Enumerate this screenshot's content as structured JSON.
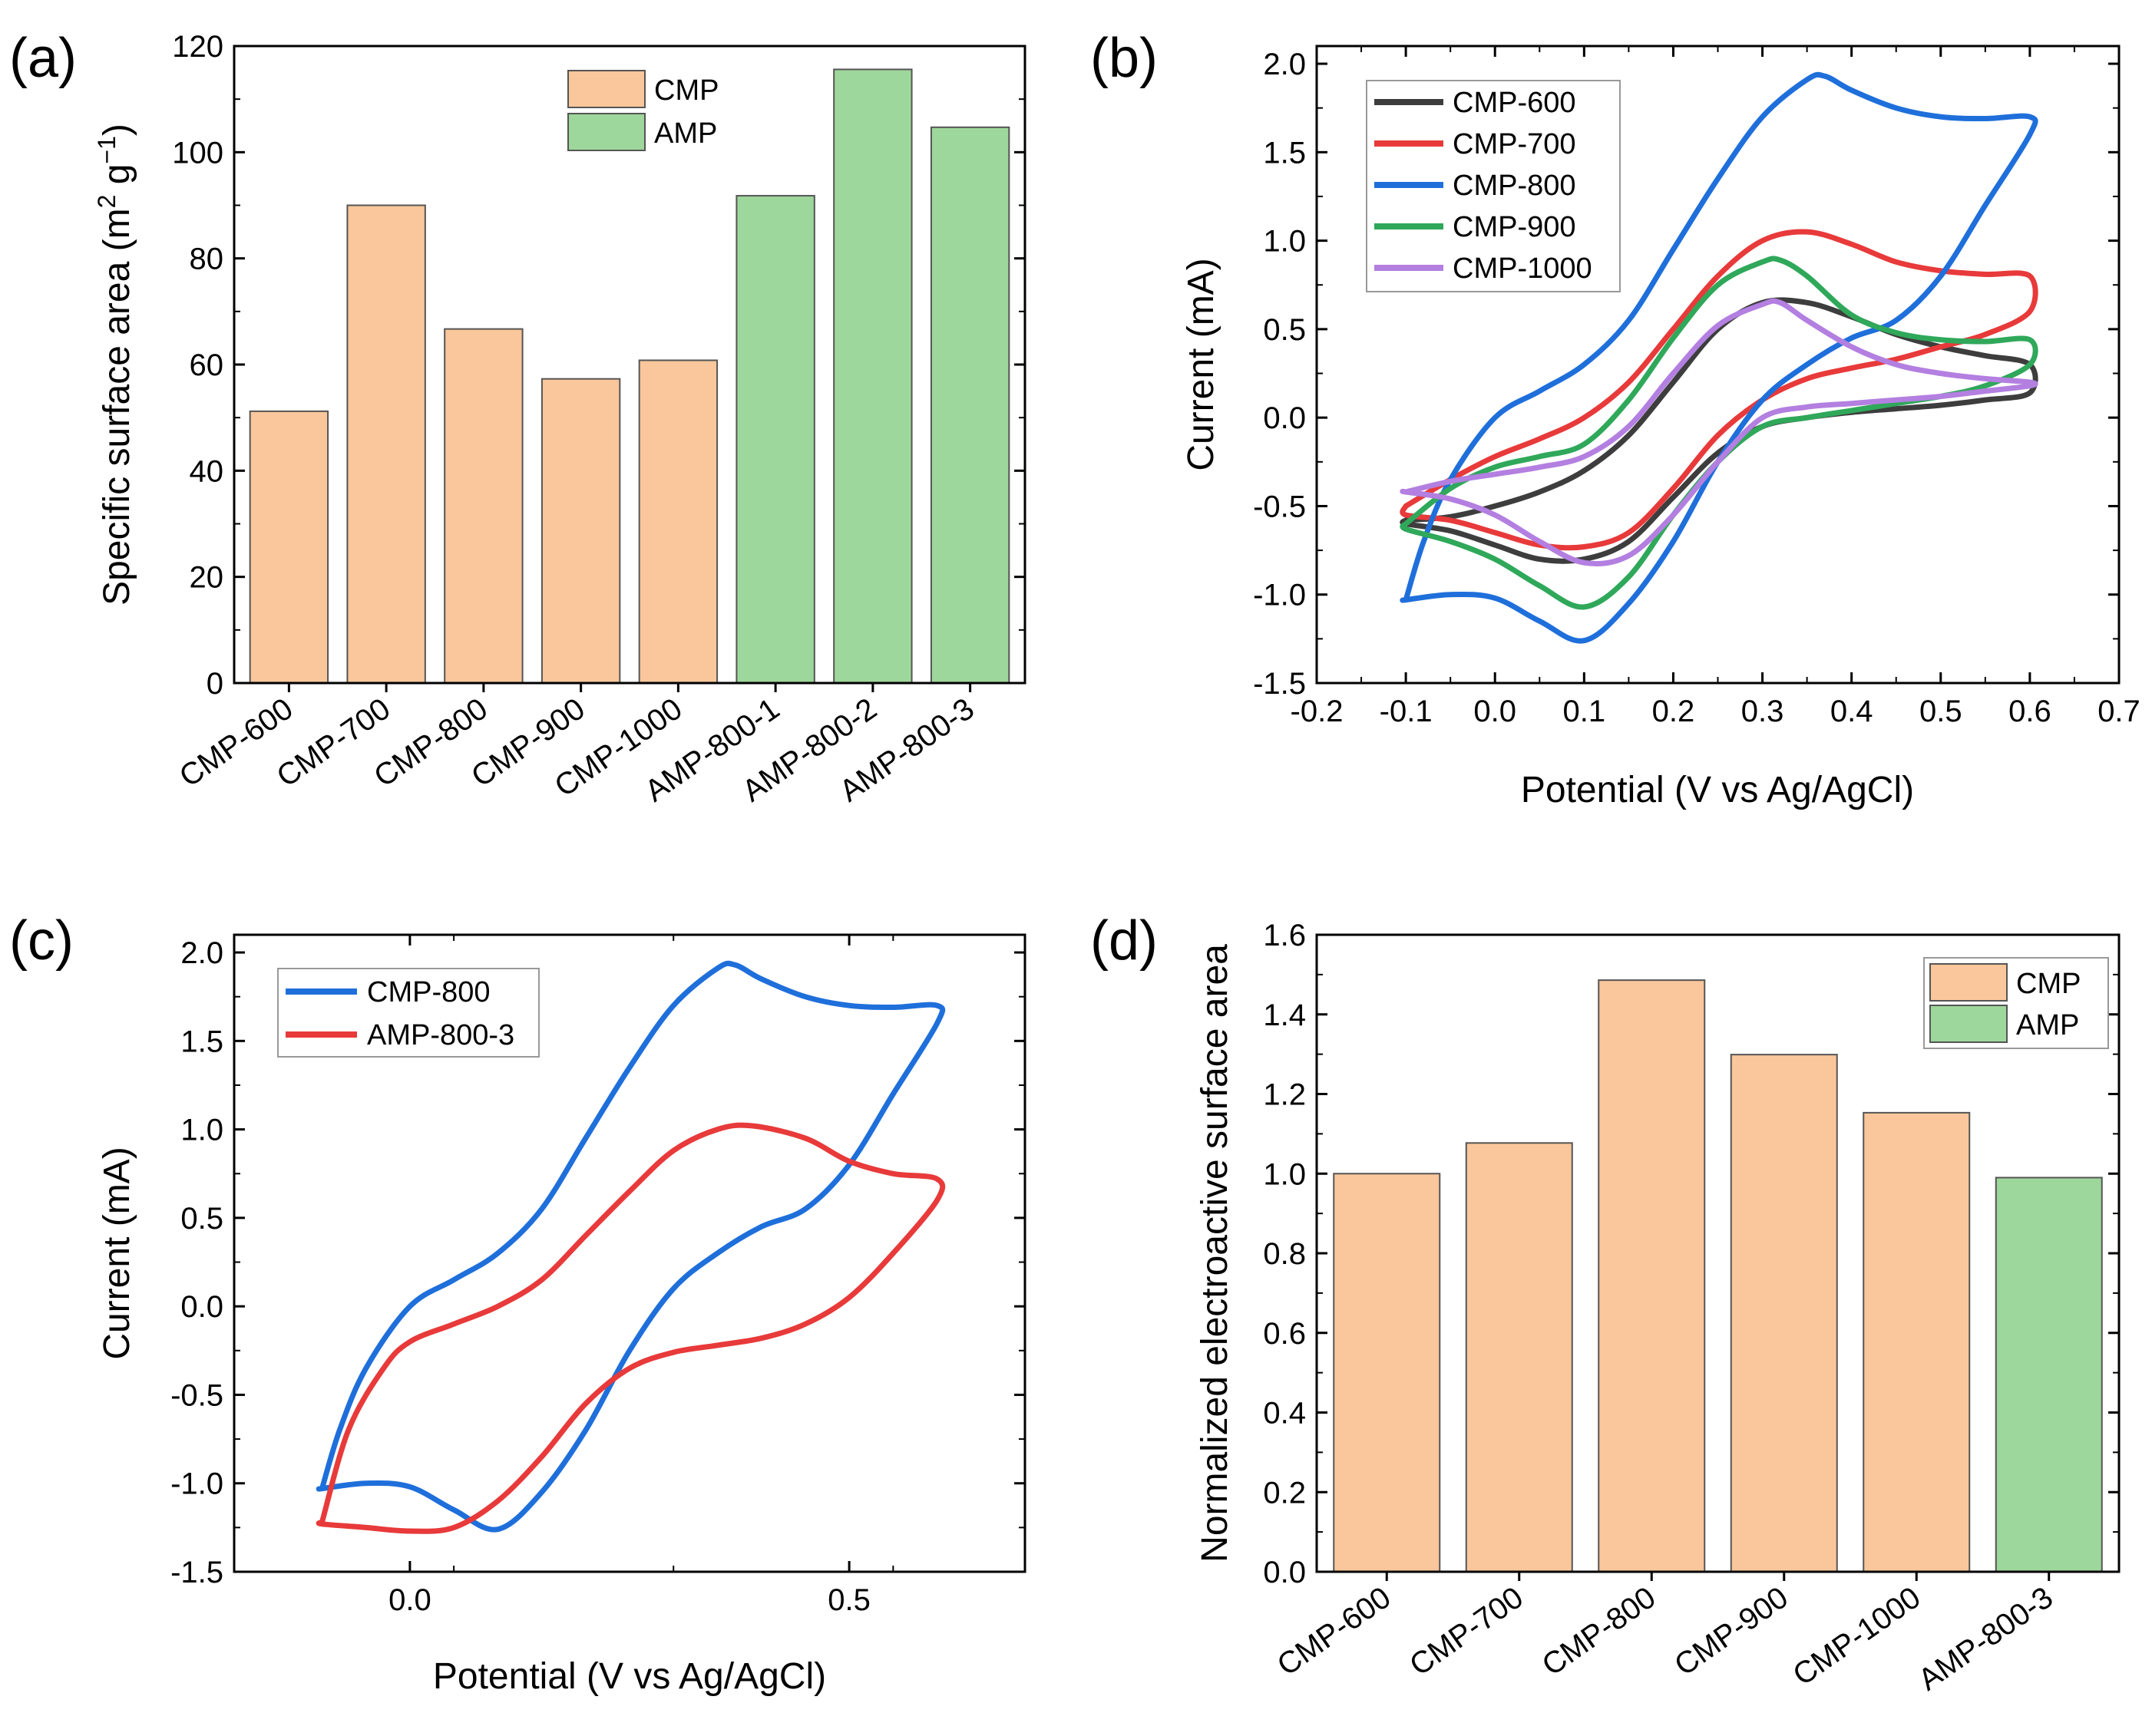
{
  "colors": {
    "CMP": "#f9c79b",
    "AMP": "#9ed79b",
    "bar_edge": "#555555",
    "CMP-600": "#3d3d3d",
    "CMP-700": "#e83a3a",
    "CMP-800": "#1f6fdb",
    "CMP-900": "#2fa85a",
    "CMP-1000": "#b37fe0",
    "AMP-800-3": "#e83a3a"
  },
  "chart_data": [
    {
      "id": "a",
      "panel_label": "(a)",
      "type": "bar",
      "categories": [
        "CMP-600",
        "CMP-700",
        "CMP-800",
        "CMP-900",
        "CMP-1000",
        "AMP-800-1",
        "AMP-800-2",
        "AMP-800-3"
      ],
      "values": [
        51.2,
        90,
        66.7,
        57.3,
        60.8,
        91.8,
        115.6,
        104.7
      ],
      "groups": [
        "CMP",
        "CMP",
        "CMP",
        "CMP",
        "CMP",
        "AMP",
        "AMP",
        "AMP"
      ],
      "legend": [
        "CMP",
        "AMP"
      ],
      "legend_position": "top-center",
      "ylabel_main": "Specific surface area (m",
      "ylabel_sup1": "2",
      "ylabel_mid": " g",
      "ylabel_sup2": "−1",
      "ylabel_end": ")",
      "ylim": [
        0,
        120
      ],
      "yticks": [
        0,
        20,
        40,
        60,
        80,
        100,
        120
      ],
      "xlabel": ""
    },
    {
      "id": "b",
      "panel_label": "(b)",
      "type": "line",
      "xlabel": "Potential (V vs Ag/AgCl)",
      "ylabel": "Current (mA)",
      "xlim": [
        -0.2,
        0.7
      ],
      "ylim": [
        -1.5,
        2.1
      ],
      "xticks": [
        "-0.2",
        "-0.1",
        "0.0",
        "0.1",
        "0.2",
        "0.3",
        "0.4",
        "0.5",
        "0.6",
        "0.7"
      ],
      "yticks": [
        "-1.5",
        "-1.0",
        "-0.5",
        "0.0",
        "0.5",
        "1.0",
        "1.5",
        "2.0"
      ],
      "legend_position": "top-left",
      "series": [
        {
          "name": "CMP-600",
          "colorKey": "CMP-600",
          "x": [
            -0.1,
            -0.05,
            0.0,
            0.05,
            0.1,
            0.15,
            0.2,
            0.25,
            0.3,
            0.35,
            0.4,
            0.45,
            0.5,
            0.55,
            0.6,
            0.6,
            0.55,
            0.5,
            0.45,
            0.4,
            0.35,
            0.3,
            0.25,
            0.2,
            0.15,
            0.1,
            0.05,
            0.0,
            -0.05,
            -0.1,
            -0.1
          ],
          "y": [
            -0.58,
            -0.56,
            -0.5,
            -0.42,
            -0.3,
            -0.1,
            0.2,
            0.5,
            0.65,
            0.65,
            0.57,
            0.47,
            0.4,
            0.35,
            0.3,
            0.14,
            0.1,
            0.07,
            0.05,
            0.03,
            0.0,
            -0.05,
            -0.2,
            -0.45,
            -0.7,
            -0.8,
            -0.8,
            -0.72,
            -0.64,
            -0.6,
            -0.58
          ]
        },
        {
          "name": "CMP-700",
          "colorKey": "CMP-700",
          "x": [
            -0.1,
            -0.05,
            0.0,
            0.05,
            0.1,
            0.15,
            0.2,
            0.25,
            0.3,
            0.35,
            0.4,
            0.45,
            0.5,
            0.55,
            0.6,
            0.6,
            0.55,
            0.5,
            0.45,
            0.4,
            0.35,
            0.3,
            0.25,
            0.2,
            0.15,
            0.1,
            0.05,
            0.0,
            -0.05,
            -0.1,
            -0.1
          ],
          "y": [
            -0.5,
            -0.35,
            -0.22,
            -0.12,
            0.0,
            0.2,
            0.5,
            0.8,
            1.0,
            1.05,
            0.98,
            0.88,
            0.83,
            0.81,
            0.8,
            0.6,
            0.47,
            0.4,
            0.33,
            0.28,
            0.22,
            0.1,
            -0.1,
            -0.4,
            -0.65,
            -0.73,
            -0.72,
            -0.65,
            -0.58,
            -0.55,
            -0.5
          ]
        },
        {
          "name": "CMP-800",
          "colorKey": "CMP-800",
          "x": [
            -0.1,
            -0.08,
            -0.05,
            0.0,
            0.05,
            0.1,
            0.15,
            0.2,
            0.25,
            0.3,
            0.35,
            0.37,
            0.4,
            0.45,
            0.5,
            0.55,
            0.6,
            0.6,
            0.55,
            0.5,
            0.45,
            0.4,
            0.35,
            0.3,
            0.25,
            0.2,
            0.15,
            0.1,
            0.05,
            0.0,
            -0.05,
            -0.1,
            -0.1
          ],
          "y": [
            -1.03,
            -0.7,
            -0.35,
            0.0,
            0.15,
            0.3,
            0.55,
            0.95,
            1.35,
            1.7,
            1.91,
            1.93,
            1.85,
            1.75,
            1.7,
            1.69,
            1.7,
            1.6,
            1.2,
            0.8,
            0.55,
            0.45,
            0.3,
            0.1,
            -0.25,
            -0.7,
            -1.05,
            -1.26,
            -1.15,
            -1.02,
            -1.0,
            -1.03,
            -1.03
          ]
        },
        {
          "name": "CMP-900",
          "colorKey": "CMP-900",
          "x": [
            -0.1,
            -0.05,
            0.0,
            0.05,
            0.1,
            0.15,
            0.2,
            0.25,
            0.3,
            0.32,
            0.35,
            0.4,
            0.45,
            0.5,
            0.55,
            0.6,
            0.6,
            0.55,
            0.5,
            0.45,
            0.4,
            0.35,
            0.3,
            0.25,
            0.2,
            0.15,
            0.1,
            0.05,
            0.0,
            -0.05,
            -0.1,
            -0.1
          ],
          "y": [
            -0.6,
            -0.4,
            -0.28,
            -0.22,
            -0.15,
            0.1,
            0.45,
            0.75,
            0.88,
            0.89,
            0.8,
            0.58,
            0.48,
            0.44,
            0.43,
            0.44,
            0.3,
            0.18,
            0.12,
            0.08,
            0.04,
            0.0,
            -0.05,
            -0.25,
            -0.55,
            -0.9,
            -1.07,
            -0.95,
            -0.8,
            -0.7,
            -0.63,
            -0.6
          ]
        },
        {
          "name": "CMP-1000",
          "colorKey": "CMP-1000",
          "x": [
            -0.1,
            -0.05,
            0.0,
            0.05,
            0.1,
            0.15,
            0.2,
            0.25,
            0.3,
            0.32,
            0.35,
            0.4,
            0.45,
            0.5,
            0.55,
            0.6,
            0.6,
            0.55,
            0.5,
            0.45,
            0.4,
            0.35,
            0.3,
            0.25,
            0.2,
            0.15,
            0.1,
            0.05,
            0.0,
            -0.05,
            -0.1,
            -0.1
          ],
          "y": [
            -0.42,
            -0.36,
            -0.32,
            -0.28,
            -0.22,
            -0.05,
            0.25,
            0.52,
            0.64,
            0.65,
            0.55,
            0.4,
            0.3,
            0.25,
            0.22,
            0.2,
            0.18,
            0.15,
            0.12,
            0.1,
            0.08,
            0.06,
            0.0,
            -0.25,
            -0.55,
            -0.78,
            -0.82,
            -0.7,
            -0.55,
            -0.46,
            -0.42,
            -0.42
          ]
        }
      ]
    },
    {
      "id": "c",
      "panel_label": "(c)",
      "type": "line",
      "xlabel": "Potential (V vs Ag/AgCl)",
      "ylabel": "Current (mA)",
      "xlim": [
        -0.2,
        0.7
      ],
      "ylim": [
        -1.5,
        2.1
      ],
      "xticks": [
        "0.0",
        "0.5"
      ],
      "xtick_values": [
        0.0,
        0.5
      ],
      "yticks": [
        "-1.5",
        "-1.0",
        "-0.5",
        "0.0",
        "0.5",
        "1.0",
        "1.5",
        "2.0"
      ],
      "legend_position": "top-left",
      "series": [
        {
          "name": "CMP-800",
          "colorKey": "CMP-800",
          "x": [
            -0.1,
            -0.08,
            -0.05,
            0.0,
            0.05,
            0.1,
            0.15,
            0.2,
            0.25,
            0.3,
            0.35,
            0.37,
            0.4,
            0.45,
            0.5,
            0.55,
            0.6,
            0.6,
            0.55,
            0.5,
            0.45,
            0.4,
            0.35,
            0.3,
            0.25,
            0.2,
            0.15,
            0.1,
            0.05,
            0.0,
            -0.05,
            -0.1,
            -0.1
          ],
          "y": [
            -1.03,
            -0.7,
            -0.35,
            0.0,
            0.15,
            0.3,
            0.55,
            0.95,
            1.35,
            1.7,
            1.91,
            1.93,
            1.85,
            1.75,
            1.7,
            1.69,
            1.7,
            1.6,
            1.2,
            0.8,
            0.55,
            0.45,
            0.3,
            0.1,
            -0.25,
            -0.7,
            -1.05,
            -1.26,
            -1.15,
            -1.02,
            -1.0,
            -1.03,
            -1.03
          ]
        },
        {
          "name": "AMP-800-3",
          "colorKey": "AMP-800-3",
          "x": [
            -0.1,
            -0.07,
            -0.03,
            0.0,
            0.05,
            0.1,
            0.15,
            0.2,
            0.25,
            0.3,
            0.35,
            0.39,
            0.45,
            0.5,
            0.55,
            0.6,
            0.6,
            0.55,
            0.5,
            0.45,
            0.4,
            0.35,
            0.3,
            0.25,
            0.2,
            0.15,
            0.1,
            0.05,
            0.0,
            -0.05,
            -0.1,
            -0.1
          ],
          "y": [
            -1.22,
            -0.7,
            -0.35,
            -0.2,
            -0.1,
            0.0,
            0.15,
            0.4,
            0.65,
            0.88,
            1.0,
            1.02,
            0.95,
            0.82,
            0.75,
            0.72,
            0.6,
            0.3,
            0.05,
            -0.1,
            -0.18,
            -0.22,
            -0.26,
            -0.35,
            -0.55,
            -0.85,
            -1.1,
            -1.25,
            -1.27,
            -1.25,
            -1.23,
            -1.22
          ]
        }
      ]
    },
    {
      "id": "d",
      "panel_label": "(d)",
      "type": "bar",
      "categories": [
        "CMP-600",
        "CMP-700",
        "CMP-800",
        "CMP-900",
        "CMP-1000",
        "AMP-800-3"
      ],
      "values": [
        1.0,
        1.077,
        1.486,
        1.299,
        1.153,
        0.99
      ],
      "groups": [
        "CMP",
        "CMP",
        "CMP",
        "CMP",
        "CMP",
        "AMP"
      ],
      "legend": [
        "CMP",
        "AMP"
      ],
      "legend_position": "top-right",
      "ylabel": "Normalized electroactive surface area",
      "ylim": [
        0,
        1.6
      ],
      "yticks": [
        "0.0",
        "0.2",
        "0.4",
        "0.6",
        "0.8",
        "1.0",
        "1.2",
        "1.4",
        "1.6"
      ],
      "xlabel": ""
    }
  ]
}
